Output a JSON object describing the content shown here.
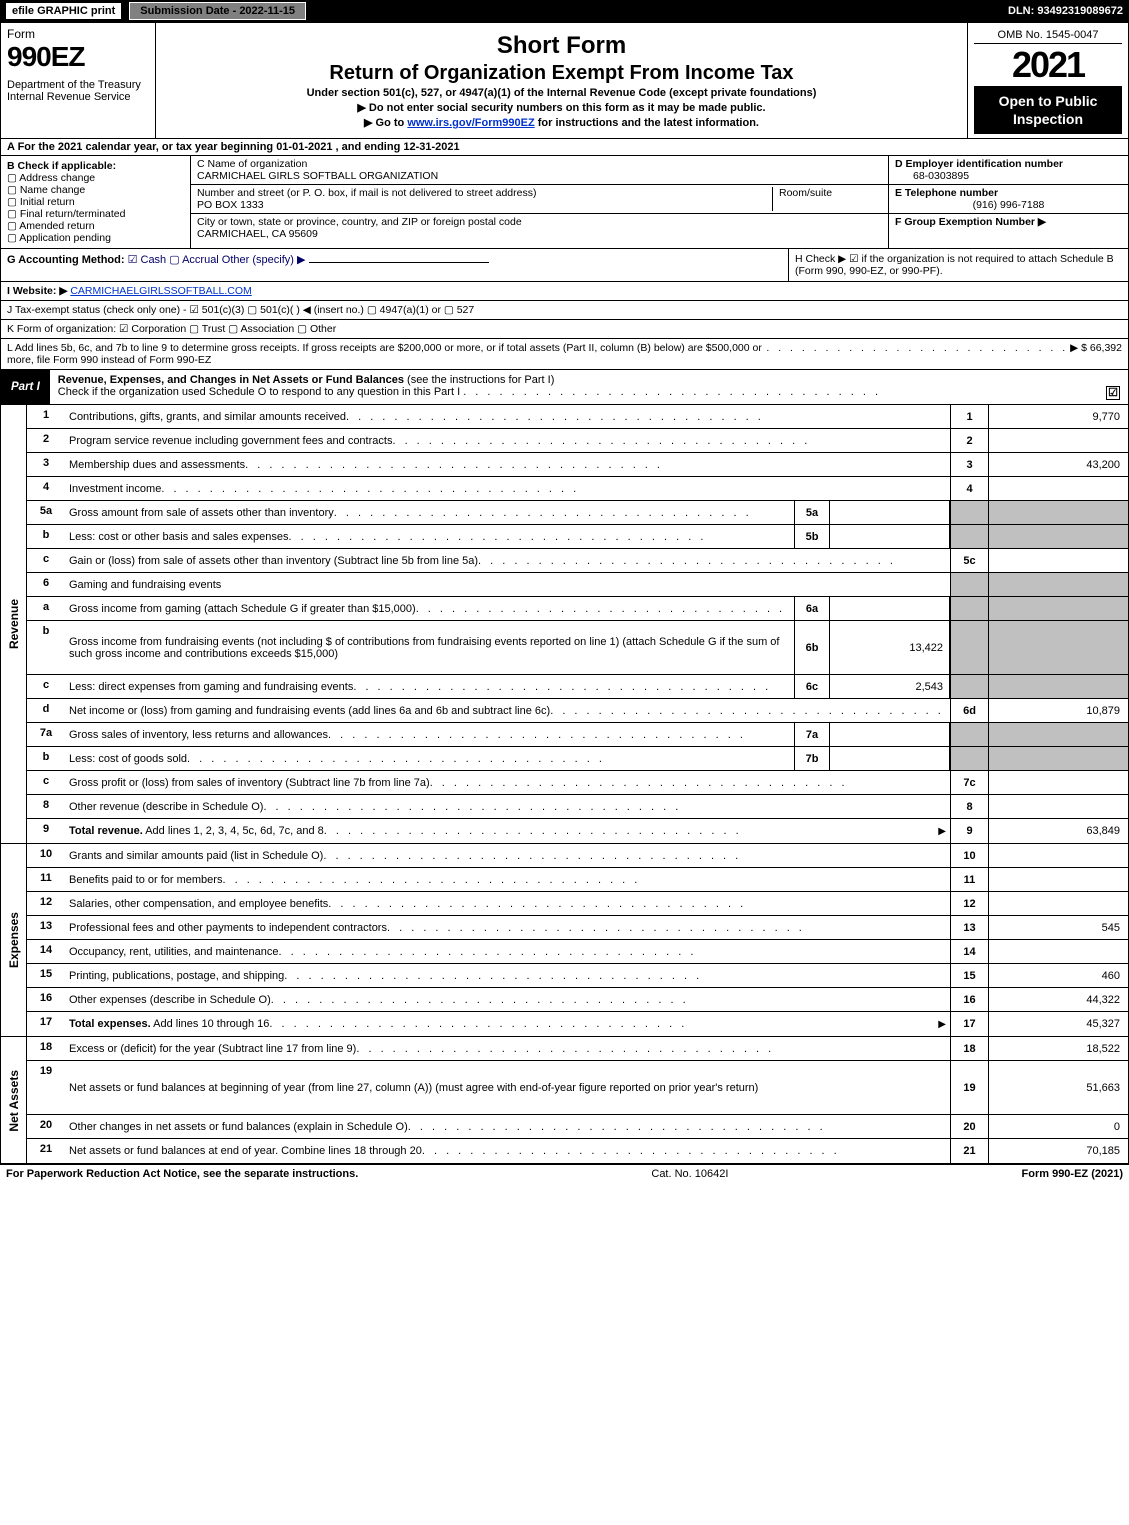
{
  "topbar": {
    "efile": "efile GRAPHIC print",
    "submission": "Submission Date - 2022-11-15",
    "dln": "DLN: 93492319089672"
  },
  "header": {
    "form_label": "Form",
    "form_num": "990EZ",
    "dept": "Department of the Treasury",
    "irs": "Internal Revenue Service",
    "short": "Short Form",
    "title2": "Return of Organization Exempt From Income Tax",
    "sub": "Under section 501(c), 527, or 4947(a)(1) of the Internal Revenue Code (except private foundations)",
    "note1": "▶ Do not enter social security numbers on this form as it may be made public.",
    "note2_pre": "▶ Go to ",
    "note2_link": "www.irs.gov/Form990EZ",
    "note2_post": " for instructions and the latest information.",
    "omb": "OMB No. 1545-0047",
    "year": "2021",
    "inspection": "Open to Public Inspection"
  },
  "row_a": "A  For the 2021 calendar year, or tax year beginning 01-01-2021 , and ending 12-31-2021",
  "col_b": {
    "label": "B  Check if applicable:",
    "items": [
      "Address change",
      "Name change",
      "Initial return",
      "Final return/terminated",
      "Amended return",
      "Application pending"
    ]
  },
  "col_c": {
    "name_label": "C Name of organization",
    "name": "CARMICHAEL GIRLS SOFTBALL ORGANIZATION",
    "street_label": "Number and street (or P. O. box, if mail is not delivered to street address)",
    "room_label": "Room/suite",
    "street": "PO BOX 1333",
    "city_label": "City or town, state or province, country, and ZIP or foreign postal code",
    "city": "CARMICHAEL, CA  95609"
  },
  "col_d": {
    "ein_label": "D Employer identification number",
    "ein": "68-0303895",
    "tel_label": "E Telephone number",
    "tel": "(916) 996-7188",
    "group_label": "F Group Exemption Number  ▶"
  },
  "row_g": {
    "g_label": "G Accounting Method: ",
    "g_opts": "☑ Cash  ▢ Accrual  Other (specify) ▶ ",
    "h_text": "H  Check ▶ ☑ if the organization is not required to attach Schedule B (Form 990, 990-EZ, or 990-PF)."
  },
  "row_i": {
    "label": "I Website: ▶",
    "val": "CARMICHAELGIRLSSOFTBALL.COM"
  },
  "row_j": "J Tax-exempt status (check only one) - ☑ 501(c)(3) ▢ 501(c)(  ) ◀ (insert no.) ▢ 4947(a)(1) or ▢ 527",
  "row_k": "K Form of organization:  ☑ Corporation  ▢ Trust  ▢ Association  ▢ Other",
  "row_l": {
    "text": "L Add lines 5b, 6c, and 7b to line 9 to determine gross receipts. If gross receipts are $200,000 or more, or if total assets (Part II, column (B) below) are $500,000 or more, file Form 990 instead of Form 990-EZ",
    "val": "▶ $ 66,392"
  },
  "part1": {
    "tab": "Part I",
    "title": "Revenue, Expenses, and Changes in Net Assets or Fund Balances ",
    "paren": "(see the instructions for Part I)",
    "sub": "Check if the organization used Schedule O to respond to any question in this Part I",
    "chk": "☑"
  },
  "revenue_label": "Revenue",
  "expenses_label": "Expenses",
  "netassets_label": "Net Assets",
  "lines_rev": [
    {
      "n": "1",
      "desc": "Contributions, gifts, grants, and similar amounts received",
      "box": "1",
      "val": "9,770"
    },
    {
      "n": "2",
      "desc": "Program service revenue including government fees and contracts",
      "box": "2",
      "val": ""
    },
    {
      "n": "3",
      "desc": "Membership dues and assessments",
      "box": "3",
      "val": "43,200"
    },
    {
      "n": "4",
      "desc": "Investment income",
      "box": "4",
      "val": ""
    },
    {
      "n": "5a",
      "desc": "Gross amount from sale of assets other than inventory",
      "sub": "5a",
      "subval": "",
      "shaded": true
    },
    {
      "n": "b",
      "desc": "Less: cost or other basis and sales expenses",
      "sub": "5b",
      "subval": "",
      "shaded": true
    },
    {
      "n": "c",
      "desc": "Gain or (loss) from sale of assets other than inventory (Subtract line 5b from line 5a)",
      "box": "5c",
      "val": ""
    },
    {
      "n": "6",
      "desc": "Gaming and fundraising events",
      "noboxes": true
    },
    {
      "n": "a",
      "desc": "Gross income from gaming (attach Schedule G if greater than $15,000)",
      "sub": "6a",
      "subval": "",
      "shaded": true
    },
    {
      "n": "b",
      "desc": "Gross income from fundraising events (not including $                     of contributions from fundraising events reported on line 1) (attach Schedule G if the sum of such gross income and contributions exceeds $15,000)",
      "sub": "6b",
      "subval": "13,422",
      "shaded": true,
      "tall": true
    },
    {
      "n": "c",
      "desc": "Less: direct expenses from gaming and fundraising events",
      "sub": "6c",
      "subval": "2,543",
      "shaded": true
    },
    {
      "n": "d",
      "desc": "Net income or (loss) from gaming and fundraising events (add lines 6a and 6b and subtract line 6c)",
      "box": "6d",
      "val": "10,879"
    },
    {
      "n": "7a",
      "desc": "Gross sales of inventory, less returns and allowances",
      "sub": "7a",
      "subval": "",
      "shaded": true
    },
    {
      "n": "b",
      "desc": "Less: cost of goods sold",
      "sub": "7b",
      "subval": "",
      "shaded": true
    },
    {
      "n": "c",
      "desc": "Gross profit or (loss) from sales of inventory (Subtract line 7b from line 7a)",
      "box": "7c",
      "val": ""
    },
    {
      "n": "8",
      "desc": "Other revenue (describe in Schedule O)",
      "box": "8",
      "val": ""
    },
    {
      "n": "9",
      "desc": "Total revenue. Add lines 1, 2, 3, 4, 5c, 6d, 7c, and 8",
      "box": "9",
      "val": "63,849",
      "bold": true,
      "arrow": true
    }
  ],
  "lines_exp": [
    {
      "n": "10",
      "desc": "Grants and similar amounts paid (list in Schedule O)",
      "box": "10",
      "val": ""
    },
    {
      "n": "11",
      "desc": "Benefits paid to or for members",
      "box": "11",
      "val": ""
    },
    {
      "n": "12",
      "desc": "Salaries, other compensation, and employee benefits",
      "box": "12",
      "val": ""
    },
    {
      "n": "13",
      "desc": "Professional fees and other payments to independent contractors",
      "box": "13",
      "val": "545"
    },
    {
      "n": "14",
      "desc": "Occupancy, rent, utilities, and maintenance",
      "box": "14",
      "val": ""
    },
    {
      "n": "15",
      "desc": "Printing, publications, postage, and shipping",
      "box": "15",
      "val": "460"
    },
    {
      "n": "16",
      "desc": "Other expenses (describe in Schedule O)",
      "box": "16",
      "val": "44,322"
    },
    {
      "n": "17",
      "desc": "Total expenses. Add lines 10 through 16",
      "box": "17",
      "val": "45,327",
      "bold": true,
      "arrow": true
    }
  ],
  "lines_net": [
    {
      "n": "18",
      "desc": "Excess or (deficit) for the year (Subtract line 17 from line 9)",
      "box": "18",
      "val": "18,522"
    },
    {
      "n": "19",
      "desc": "Net assets or fund balances at beginning of year (from line 27, column (A)) (must agree with end-of-year figure reported on prior year's return)",
      "box": "19",
      "val": "51,663",
      "tall": true
    },
    {
      "n": "20",
      "desc": "Other changes in net assets or fund balances (explain in Schedule O)",
      "box": "20",
      "val": "0"
    },
    {
      "n": "21",
      "desc": "Net assets or fund balances at end of year. Combine lines 18 through 20",
      "box": "21",
      "val": "70,185"
    }
  ],
  "footer": {
    "left": "For Paperwork Reduction Act Notice, see the separate instructions.",
    "mid": "Cat. No. 10642I",
    "right": "Form 990-EZ (2021)"
  }
}
